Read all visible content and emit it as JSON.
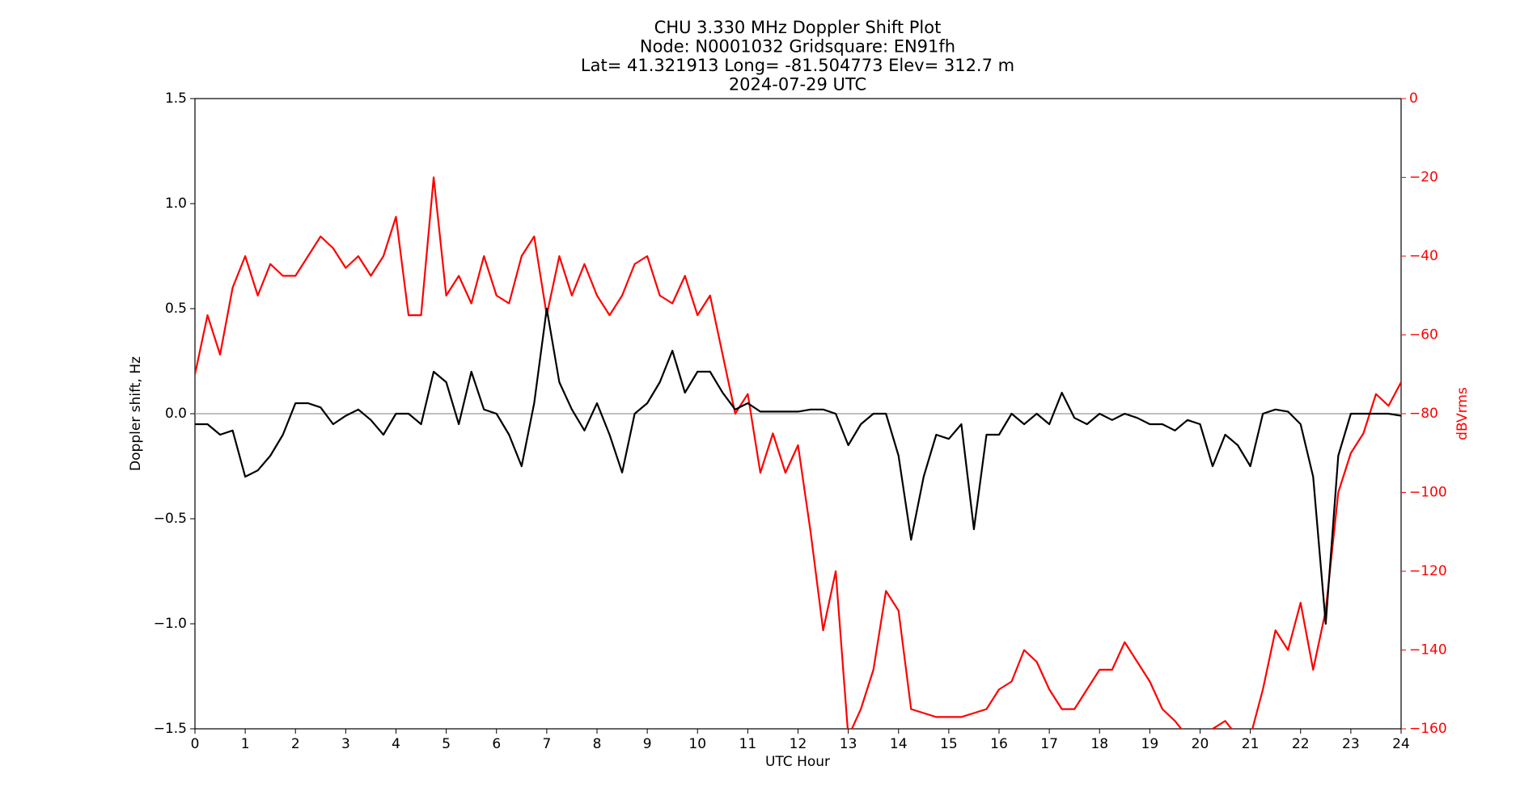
{
  "chart_data": {
    "type": "line",
    "title": [
      "CHU 3.330 MHz Doppler Shift Plot",
      "Node:  N0001032     Gridsquare:  EN91fh",
      "Lat= 41.321913    Long= -81.504773    Elev= 312.7 m",
      "2024-07-29  UTC"
    ],
    "xlabel": "UTC Hour",
    "ylabel": "Doppler shift, Hz",
    "y2label": "dBVrms",
    "xlim": [
      0,
      24
    ],
    "ylim": [
      -1.5,
      1.5
    ],
    "y2lim": [
      -160,
      0
    ],
    "xticks": [
      0,
      1,
      2,
      3,
      4,
      5,
      6,
      7,
      8,
      9,
      10,
      11,
      12,
      13,
      14,
      15,
      16,
      17,
      18,
      19,
      20,
      21,
      22,
      23,
      24
    ],
    "yticks": [
      {
        "value": -1.5,
        "label": "−1.5"
      },
      {
        "value": -1.0,
        "label": "−1.0"
      },
      {
        "value": -0.5,
        "label": "−0.5"
      },
      {
        "value": 0.0,
        "label": "0.0"
      },
      {
        "value": 0.5,
        "label": "0.5"
      },
      {
        "value": 1.0,
        "label": "1.0"
      },
      {
        "value": 1.5,
        "label": "1.5"
      }
    ],
    "y2ticks": [
      {
        "value": -160,
        "label": "−160"
      },
      {
        "value": -140,
        "label": "−140"
      },
      {
        "value": -120,
        "label": "−120"
      },
      {
        "value": -100,
        "label": "−100"
      },
      {
        "value": -80,
        "label": "−80"
      },
      {
        "value": -60,
        "label": "−60"
      },
      {
        "value": -40,
        "label": "−40"
      },
      {
        "value": -20,
        "label": "−20"
      },
      0
    ],
    "reference_line": {
      "value": 0,
      "color": "#999999"
    },
    "x": [
      0,
      0.25,
      0.5,
      0.75,
      1,
      1.25,
      1.5,
      1.75,
      2,
      2.25,
      2.5,
      2.75,
      3,
      3.25,
      3.5,
      3.75,
      4,
      4.25,
      4.5,
      4.75,
      5,
      5.25,
      5.5,
      5.75,
      6,
      6.25,
      6.5,
      6.75,
      7,
      7.25,
      7.5,
      7.75,
      8,
      8.25,
      8.5,
      8.75,
      9,
      9.25,
      9.5,
      9.75,
      10,
      10.25,
      10.5,
      10.75,
      11,
      11.25,
      11.5,
      11.75,
      12,
      12.25,
      12.5,
      12.75,
      13,
      13.25,
      13.5,
      13.75,
      14,
      14.25,
      14.5,
      14.75,
      15,
      15.25,
      15.5,
      15.75,
      16,
      16.25,
      16.5,
      16.75,
      17,
      17.25,
      17.5,
      17.75,
      18,
      18.25,
      18.5,
      18.75,
      19,
      19.25,
      19.5,
      19.75,
      20,
      20.25,
      20.5,
      20.75,
      21,
      21.25,
      21.5,
      21.75,
      22,
      22.25,
      22.5,
      22.75,
      23,
      23.25,
      23.5,
      23.75,
      24
    ],
    "series": [
      {
        "color": "#000000",
        "axis": "y",
        "values": [
          -0.05,
          -0.05,
          -0.1,
          -0.08,
          -0.3,
          -0.27,
          -0.2,
          -0.1,
          0.05,
          0.05,
          0.03,
          -0.05,
          -0.01,
          0.02,
          -0.03,
          -0.1,
          0.0,
          0.0,
          -0.05,
          0.2,
          0.15,
          -0.05,
          0.2,
          0.02,
          0.0,
          -0.1,
          -0.25,
          0.05,
          0.5,
          0.15,
          0.02,
          -0.08,
          0.05,
          -0.1,
          -0.28,
          0.0,
          0.05,
          0.15,
          0.3,
          0.1,
          0.2,
          0.2,
          0.1,
          0.02,
          0.05,
          0.01,
          0.01,
          0.01,
          0.01,
          0.02,
          0.02,
          0.0,
          -0.15,
          -0.05,
          0.0,
          0.0,
          -0.2,
          -0.6,
          -0.3,
          -0.1,
          -0.12,
          -0.05,
          -0.55,
          -0.1,
          -0.1,
          0.0,
          -0.05,
          0.0,
          -0.05,
          0.1,
          -0.02,
          -0.05,
          0.0,
          -0.03,
          0.0,
          -0.02,
          -0.05,
          -0.05,
          -0.08,
          -0.03,
          -0.05,
          -0.25,
          -0.1,
          -0.15,
          -0.25,
          0.0,
          0.02,
          0.01,
          -0.05,
          -0.3,
          -1.0,
          -0.2,
          0.0,
          0.0,
          0.0,
          0.0,
          -0.01
        ]
      },
      {
        "color": "#ff0000",
        "axis": "y2",
        "values": [
          -70,
          -55,
          -65,
          -48,
          -40,
          -50,
          -42,
          -45,
          -45,
          -40,
          -35,
          -38,
          -43,
          -40,
          -45,
          -40,
          -30,
          -55,
          -55,
          -20,
          -50,
          -45,
          -52,
          -40,
          -50,
          -52,
          -40,
          -35,
          -55,
          -40,
          -50,
          -42,
          -50,
          -55,
          -50,
          -42,
          -40,
          -50,
          -52,
          -45,
          -55,
          -50,
          -65,
          -80,
          -75,
          -95,
          -85,
          -95,
          -88,
          -110,
          -135,
          -120,
          -162,
          -155,
          -145,
          -125,
          -130,
          -155,
          -156,
          -157,
          -157,
          -157,
          -156,
          -155,
          -150,
          -148,
          -140,
          -143,
          -150,
          -155,
          -155,
          -150,
          -145,
          -145,
          -138,
          -143,
          -148,
          -155,
          -158,
          -162,
          -162,
          -160,
          -158,
          -162,
          -162,
          -150,
          -135,
          -140,
          -128,
          -145,
          -130,
          -100,
          -90,
          -85,
          -75,
          -78,
          -72
        ]
      }
    ]
  }
}
